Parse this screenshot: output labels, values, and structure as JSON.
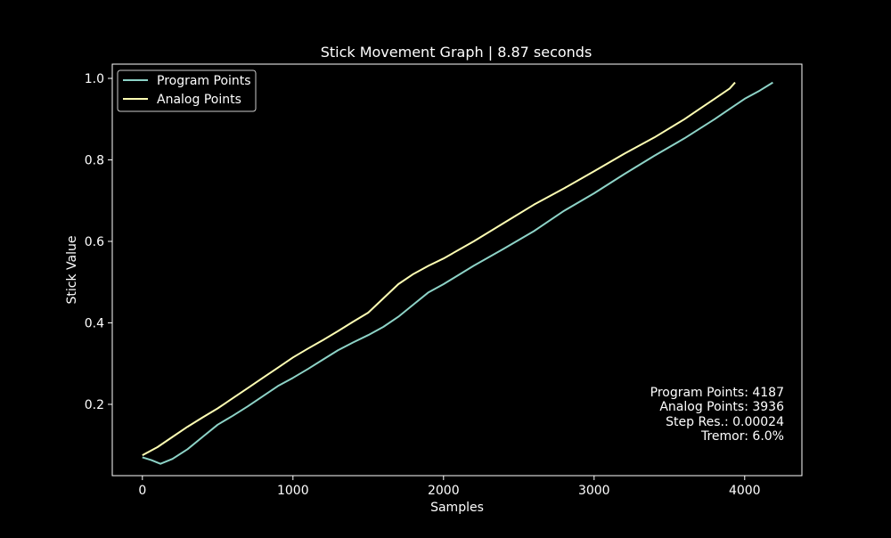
{
  "chart_data": {
    "type": "line",
    "title": "Stick Movement Graph | 8.87 seconds",
    "xlabel": "Samples",
    "ylabel": "Stick Value",
    "xlim": [
      -200,
      4380
    ],
    "ylim": [
      0.025,
      1.035
    ],
    "xticks": [
      0,
      1000,
      2000,
      3000,
      4000
    ],
    "yticks": [
      0.2,
      0.4,
      0.6,
      0.8,
      1.0
    ],
    "xtick_labels": [
      "0",
      "1000",
      "2000",
      "3000",
      "4000"
    ],
    "ytick_labels": [
      "0.2",
      "0.4",
      "0.6",
      "0.8",
      "1.0"
    ],
    "grid": false,
    "legend_position": "top-left",
    "series": [
      {
        "name": "Program Points",
        "color": "#8dd3c7",
        "x": [
          0,
          60,
          120,
          200,
          300,
          400,
          500,
          600,
          700,
          800,
          900,
          1000,
          1100,
          1200,
          1300,
          1400,
          1500,
          1600,
          1700,
          1800,
          1900,
          2000,
          2200,
          2400,
          2600,
          2800,
          3000,
          3200,
          3400,
          3600,
          3800,
          3900,
          4000,
          4100,
          4187
        ],
        "y": [
          0.07,
          0.063,
          0.054,
          0.066,
          0.09,
          0.12,
          0.15,
          0.172,
          0.195,
          0.22,
          0.245,
          0.265,
          0.287,
          0.31,
          0.333,
          0.352,
          0.37,
          0.39,
          0.415,
          0.445,
          0.475,
          0.495,
          0.54,
          0.582,
          0.625,
          0.675,
          0.718,
          0.765,
          0.81,
          0.853,
          0.9,
          0.925,
          0.95,
          0.97,
          0.99
        ]
      },
      {
        "name": "Analog Points",
        "color": "#ffffb3",
        "x": [
          0,
          100,
          200,
          300,
          400,
          500,
          600,
          700,
          800,
          900,
          1000,
          1100,
          1200,
          1300,
          1400,
          1500,
          1600,
          1700,
          1800,
          1900,
          2000,
          2200,
          2400,
          2600,
          2800,
          3000,
          3200,
          3400,
          3600,
          3700,
          3800,
          3900,
          3936
        ],
        "y": [
          0.075,
          0.095,
          0.12,
          0.145,
          0.168,
          0.19,
          0.215,
          0.24,
          0.265,
          0.29,
          0.315,
          0.337,
          0.358,
          0.38,
          0.403,
          0.425,
          0.46,
          0.495,
          0.52,
          0.54,
          0.558,
          0.6,
          0.645,
          0.69,
          0.73,
          0.772,
          0.815,
          0.855,
          0.9,
          0.925,
          0.95,
          0.975,
          0.99
        ]
      }
    ],
    "annotations": [
      "Program Points: 4187",
      "Analog Points: 3936",
      "Step Res.: 0.00024",
      "Tremor: 6.0%"
    ]
  }
}
